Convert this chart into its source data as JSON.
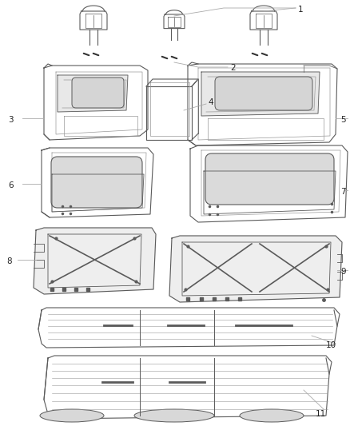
{
  "bg_color": "#ffffff",
  "lc": "#5a5a5a",
  "llc": "#999999",
  "vlc": "#333333",
  "label_fs": 7.5,
  "label_color": "#222222"
}
